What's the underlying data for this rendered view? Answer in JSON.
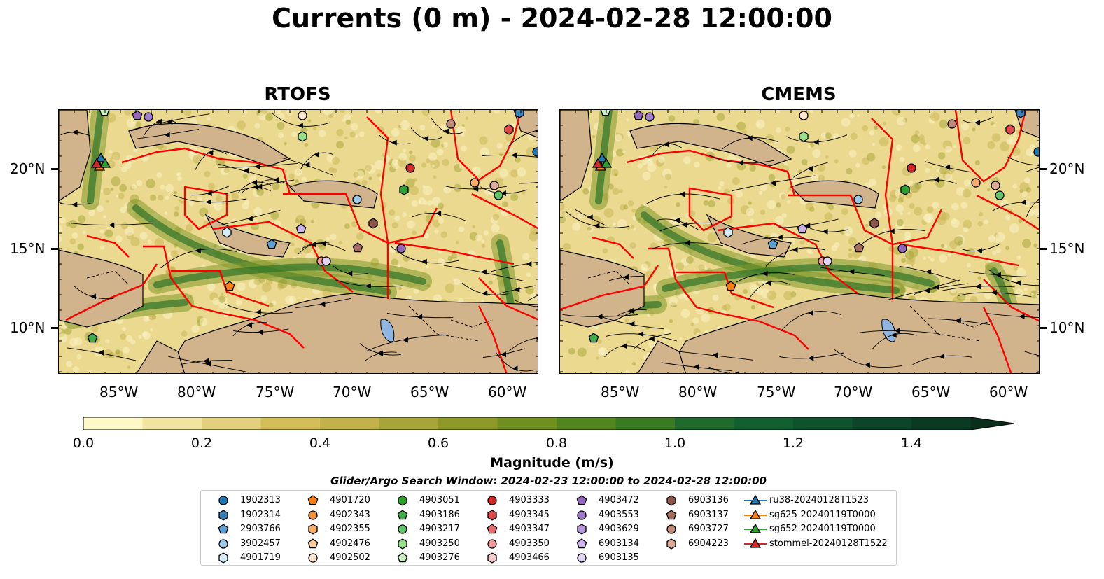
{
  "title": "Currents (0 m) - 2024-02-28 12:00:00",
  "panels": [
    {
      "name": "RTOFS"
    },
    {
      "name": "CMEMS"
    }
  ],
  "lat_ticks": [
    "20°N",
    "15°N",
    "10°N"
  ],
  "lon_ticks": [
    "85°W",
    "80°W",
    "75°W",
    "70°W",
    "65°W",
    "60°W"
  ],
  "colorbar": {
    "label": "Magnitude (m/s)",
    "ticks": [
      "0.0",
      "0.2",
      "0.4",
      "0.6",
      "0.8",
      "1.0",
      "1.2",
      "1.4"
    ],
    "colors": [
      "#fdf8c6",
      "#f1e3a0",
      "#e3cf7c",
      "#d5bd58",
      "#c3b14a",
      "#a8a538",
      "#8e9a27",
      "#6f8f1f",
      "#52851e",
      "#3a7a22",
      "#1f6a2c",
      "#12602f",
      "#0e532d",
      "#0c4527",
      "#0b3a22",
      "#0a2e1c"
    ]
  },
  "search_window": "Glider/Argo Search Window: 2024-02-23 12:00:00 to 2024-02-28 12:00:00",
  "legend": [
    [
      {
        "label": "1902313",
        "marker": "circle",
        "color": "#1f77b4"
      },
      {
        "label": "1902314",
        "marker": "hexagon",
        "color": "#3c80b8"
      },
      {
        "label": "2903766",
        "marker": "pentagon",
        "color": "#5ba0d4"
      },
      {
        "label": "3902457",
        "marker": "circle",
        "color": "#9ecae8"
      },
      {
        "label": "4901719",
        "marker": "hexagon",
        "color": "#d6ecf7"
      }
    ],
    [
      {
        "label": "4901720",
        "marker": "pentagon",
        "color": "#ff7f0e"
      },
      {
        "label": "4902343",
        "marker": "circle",
        "color": "#f5913a"
      },
      {
        "label": "4902355",
        "marker": "hexagon",
        "color": "#fbae6b"
      },
      {
        "label": "4902476",
        "marker": "pentagon",
        "color": "#fcc99d"
      },
      {
        "label": "4902502",
        "marker": "circle",
        "color": "#fde4cc"
      }
    ],
    [
      {
        "label": "4903051",
        "marker": "hexagon",
        "color": "#2ca02c"
      },
      {
        "label": "4903186",
        "marker": "pentagon",
        "color": "#3fae4a"
      },
      {
        "label": "4903217",
        "marker": "circle",
        "color": "#63c56a"
      },
      {
        "label": "4903250",
        "marker": "hexagon",
        "color": "#98df8a"
      },
      {
        "label": "4903276",
        "marker": "pentagon",
        "color": "#c7f0c0"
      }
    ],
    [
      {
        "label": "4903333",
        "marker": "circle",
        "color": "#d62728"
      },
      {
        "label": "4903345",
        "marker": "hexagon",
        "color": "#e0484a"
      },
      {
        "label": "4903347",
        "marker": "pentagon",
        "color": "#e86b6b"
      },
      {
        "label": "4903350",
        "marker": "circle",
        "color": "#f09a9a"
      },
      {
        "label": "4903466",
        "marker": "hexagon",
        "color": "#f9c8c8"
      }
    ],
    [
      {
        "label": "4903472",
        "marker": "pentagon",
        "color": "#9467bd"
      },
      {
        "label": "4903553",
        "marker": "circle",
        "color": "#a07ccc"
      },
      {
        "label": "4903629",
        "marker": "hexagon",
        "color": "#b597dc"
      },
      {
        "label": "6903134",
        "marker": "pentagon",
        "color": "#cbb4ea"
      },
      {
        "label": "6903135",
        "marker": "circle",
        "color": "#e2d3f5"
      }
    ],
    [
      {
        "label": "6903136",
        "marker": "hexagon",
        "color": "#8c564b"
      },
      {
        "label": "6903137",
        "marker": "pentagon",
        "color": "#a66e5e"
      },
      {
        "label": "6903727",
        "marker": "circle",
        "color": "#c08a78"
      },
      {
        "label": "6904223",
        "marker": "hexagon",
        "color": "#dba896"
      }
    ],
    [
      {
        "label": "ru38-20240128T1523",
        "marker": "triangle",
        "color": "#1f77b4"
      },
      {
        "label": "sg625-20240119T0000",
        "marker": "triangle",
        "color": "#ff7f0e"
      },
      {
        "label": "sg652-20240119T0000",
        "marker": "triangle",
        "color": "#2ca02c"
      },
      {
        "label": "stommel-20240128T1522",
        "marker": "triangle",
        "color": "#d62728"
      }
    ]
  ]
}
